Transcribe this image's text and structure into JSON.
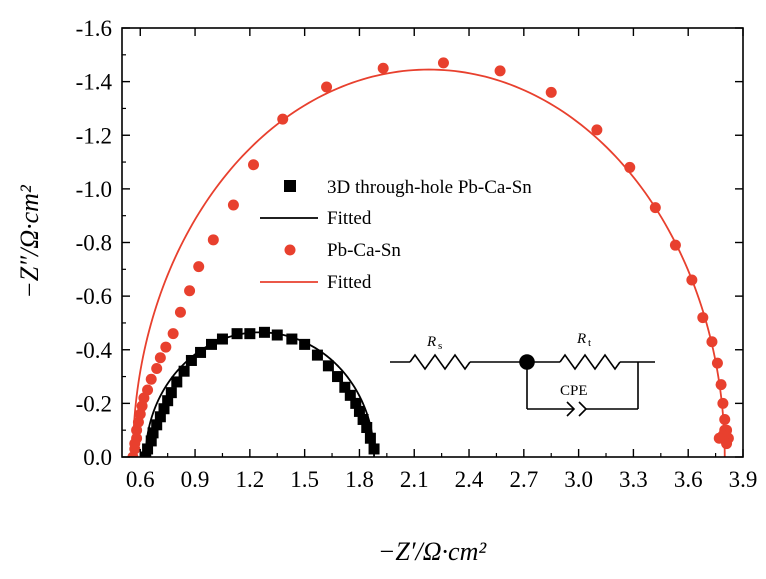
{
  "chart_data": {
    "type": "scatter",
    "xlabel": "−Z′/Ω·cm²",
    "ylabel": "−Z″/Ω·cm²",
    "xlim": [
      0.5,
      3.9
    ],
    "ylim": [
      0.0,
      -1.6
    ],
    "x_ticks": [
      "0.6",
      "0.9",
      "1.2",
      "1.5",
      "1.8",
      "2.1",
      "2.4",
      "2.7",
      "3.0",
      "3.3",
      "3.6",
      "3.9"
    ],
    "y_ticks": [
      "0.0",
      "-0.2",
      "-0.4",
      "-0.6",
      "-0.8",
      "-1.0",
      "-1.2",
      "-1.4",
      "-1.6"
    ],
    "legend_position": "center-left",
    "series": [
      {
        "name": "3D through-hole Pb-Ca-Sn",
        "marker": "square",
        "color": "#000000",
        "x": [
          0.63,
          0.64,
          0.66,
          0.67,
          0.69,
          0.71,
          0.73,
          0.75,
          0.77,
          0.8,
          0.84,
          0.88,
          0.93,
          0.99,
          1.05,
          1.13,
          1.2,
          1.28,
          1.35,
          1.43,
          1.5,
          1.57,
          1.63,
          1.68,
          1.72,
          1.75,
          1.78,
          1.8,
          1.82,
          1.84,
          1.86,
          1.88
        ],
        "y": [
          0.0,
          -0.03,
          -0.06,
          -0.09,
          -0.12,
          -0.15,
          -0.18,
          -0.21,
          -0.24,
          -0.28,
          -0.32,
          -0.36,
          -0.39,
          -0.42,
          -0.44,
          -0.46,
          -0.46,
          -0.465,
          -0.455,
          -0.44,
          -0.42,
          -0.38,
          -0.34,
          -0.3,
          -0.26,
          -0.23,
          -0.2,
          -0.17,
          -0.14,
          -0.11,
          -0.07,
          -0.03
        ]
      },
      {
        "name": "Fitted",
        "line": true,
        "color": "#000000",
        "center": [
          1.255,
          0.0
        ],
        "semi_axes": [
          0.625,
          0.465
        ]
      },
      {
        "name": "Pb-Ca-Sn",
        "marker": "circle",
        "color": "#e8402e",
        "x": [
          0.56,
          0.57,
          0.57,
          0.58,
          0.58,
          0.59,
          0.6,
          0.61,
          0.62,
          0.64,
          0.66,
          0.69,
          0.71,
          0.74,
          0.78,
          0.82,
          0.87,
          0.92,
          1.0,
          1.11,
          1.22,
          1.38,
          1.62,
          1.93,
          2.26,
          2.57,
          2.85,
          3.1,
          3.28,
          3.42,
          3.53,
          3.62,
          3.68,
          3.73,
          3.76,
          3.78,
          3.79,
          3.8,
          3.81,
          3.82,
          3.81,
          3.8,
          3.79,
          3.77
        ],
        "y": [
          0.0,
          -0.03,
          -0.05,
          -0.07,
          -0.1,
          -0.13,
          -0.16,
          -0.19,
          -0.22,
          -0.25,
          -0.29,
          -0.33,
          -0.37,
          -0.41,
          -0.46,
          -0.54,
          -0.62,
          -0.71,
          -0.81,
          -0.94,
          -1.09,
          -1.26,
          -1.38,
          -1.45,
          -1.47,
          -1.44,
          -1.36,
          -1.22,
          -1.08,
          -0.93,
          -0.79,
          -0.66,
          -0.52,
          -0.43,
          -0.35,
          -0.27,
          -0.2,
          -0.14,
          -0.1,
          -0.07,
          -0.05,
          -0.1,
          -0.08,
          -0.07
        ]
      },
      {
        "name": "Fitted",
        "line": true,
        "color": "#e8402e",
        "center": [
          2.18,
          0.0
        ],
        "semi_axes": [
          1.62,
          1.445
        ]
      }
    ],
    "annotations": {
      "circuit_labels": [
        "R",
        "s",
        "R",
        "t",
        "CPE"
      ]
    }
  }
}
